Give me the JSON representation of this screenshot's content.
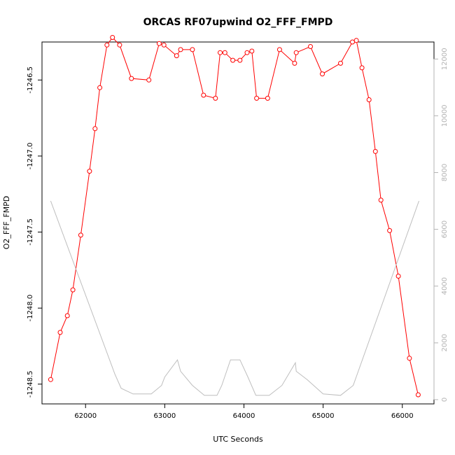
{
  "chart_data": {
    "type": "line",
    "title": "ORCAS RF07upwind O2_FFF_FMPD",
    "xlabel": "UTC Seconds",
    "ylabel": "O2_FFF_FMPD",
    "xlim": [
      61450,
      66400
    ],
    "ylim": [
      -1248.63,
      -1246.25
    ],
    "y2lim": [
      -150,
      12600
    ],
    "x_ticks": [
      62000,
      63000,
      64000,
      65000,
      66000
    ],
    "y_ticks": [
      -1248.5,
      -1248.0,
      -1247.5,
      -1247.0,
      -1246.5
    ],
    "y2_ticks": [
      0,
      2000,
      4000,
      6000,
      8000,
      10000,
      12000
    ],
    "x_tick_labels": [
      "62000",
      "63000",
      "64000",
      "65000",
      "66000"
    ],
    "y_tick_labels": [
      "-1248.5",
      "-1248.0",
      "-1247.5",
      "-1247.0",
      "-1246.5"
    ],
    "y2_tick_labels": [
      "0",
      "2000",
      "4000",
      "6000",
      "8000",
      "10000",
      "12000"
    ],
    "colors": {
      "series": "#ff0000",
      "altitude": "#bebebe",
      "axis": "#000000",
      "axis_right": "#b3b3b3"
    },
    "series": [
      {
        "name": "",
        "axis": "left",
        "style": "line-points",
        "color": "#ff0000",
        "x": [
          61560,
          61680,
          61770,
          61840,
          61940,
          62050,
          62120,
          62180,
          62270,
          62340,
          62430,
          62580,
          62800,
          62930,
          62990,
          63150,
          63200,
          63350,
          63490,
          63640,
          63700,
          63760,
          63860,
          63950,
          64040,
          64100,
          64160,
          64300,
          64450,
          64640,
          64660,
          64840,
          64990,
          65220,
          65370,
          65420,
          65490,
          65580,
          65660,
          65730,
          65840,
          65950,
          66090,
          66200
        ],
        "y": [
          -1248.47,
          -1248.16,
          -1248.05,
          -1247.88,
          -1247.52,
          -1247.1,
          -1246.82,
          -1246.55,
          -1246.27,
          -1246.22,
          -1246.27,
          -1246.49,
          -1246.5,
          -1246.26,
          -1246.27,
          -1246.34,
          -1246.3,
          -1246.3,
          -1246.6,
          -1246.62,
          -1246.32,
          -1246.32,
          -1246.37,
          -1246.37,
          -1246.32,
          -1246.31,
          -1246.62,
          -1246.62,
          -1246.3,
          -1246.39,
          -1246.32,
          -1246.28,
          -1246.46,
          -1246.39,
          -1246.25,
          -1246.24,
          -1246.42,
          -1246.63,
          -1246.97,
          -1247.29,
          -1247.49,
          -1247.79,
          -1248.33,
          -1248.57
        ]
      },
      {
        "name": "",
        "axis": "right",
        "style": "line",
        "color": "#bebebe",
        "x": [
          61560,
          62370,
          62450,
          62600,
          62830,
          62960,
          63000,
          63160,
          63200,
          63350,
          63500,
          63660,
          63720,
          63830,
          63950,
          64050,
          64150,
          64320,
          64480,
          64650,
          64660,
          64800,
          65000,
          65220,
          65380,
          66210
        ],
        "y": [
          7000,
          900,
          400,
          200,
          200,
          500,
          800,
          1400,
          1000,
          500,
          150,
          150,
          500,
          1400,
          1400,
          800,
          150,
          150,
          500,
          1300,
          1000,
          700,
          200,
          150,
          500,
          7000
        ]
      }
    ]
  }
}
